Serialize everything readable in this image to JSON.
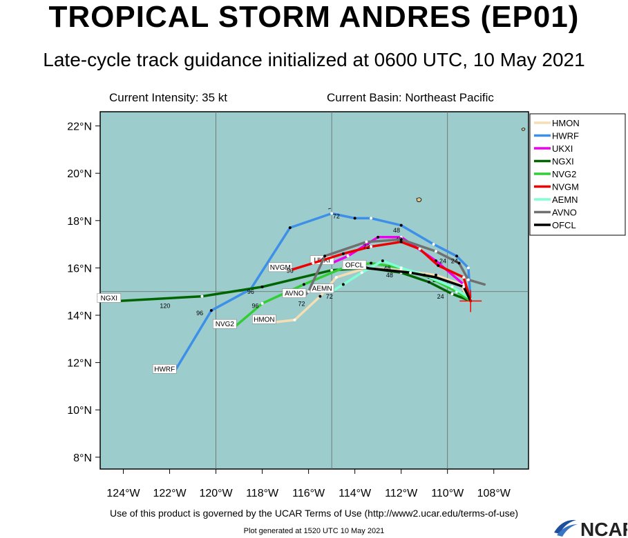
{
  "header": {
    "title": "TROPICAL STORM ANDRES (EP01)",
    "subtitle": "Late-cycle track guidance initialized at 0600 UTC, 10 May 2021",
    "intensity": "Current Intensity: 35 kt",
    "basin": "Current Basin: Northeast Pacific"
  },
  "footer": {
    "terms": "Use of this product is governed by the UCAR Terms of Use (http://www2.ucar.edu/terms-of-use)",
    "generated": "Plot generated at 1520 UTC   10 May 2021",
    "logo": "NCAR"
  },
  "colors": {
    "ocean": "#9dcccc",
    "land": "#e0c58a",
    "grid": "#666666",
    "storm_marker": "#ff0000"
  },
  "map_axes": {
    "lon_range": [
      -125,
      -106.5
    ],
    "lat_range": [
      7.5,
      22.6
    ],
    "lon_ticks": [
      -124,
      -122,
      -120,
      -118,
      -116,
      -114,
      -112,
      -110,
      -108
    ],
    "lon_labels": [
      "124°W",
      "122°W",
      "120°W",
      "118°W",
      "116°W",
      "114°W",
      "112°W",
      "110°W",
      "108°W"
    ],
    "lat_ticks": [
      8,
      10,
      12,
      14,
      16,
      18,
      20,
      22
    ],
    "lat_labels": [
      "8°N",
      "10°N",
      "12°N",
      "14°N",
      "16°N",
      "18°N",
      "20°N",
      "22°N"
    ],
    "grid_lons": [
      -120,
      -115,
      -110
    ],
    "grid_lats": [
      15
    ]
  },
  "storm_position": {
    "lon": -109.0,
    "lat": 14.6
  },
  "legend": [
    {
      "name": "HMON",
      "color": "#f5deb3"
    },
    {
      "name": "HWRF",
      "color": "#3d8fe8"
    },
    {
      "name": "UKXI",
      "color": "#ee00ee"
    },
    {
      "name": "NGXI",
      "color": "#006400"
    },
    {
      "name": "NVG2",
      "color": "#32cd32"
    },
    {
      "name": "NVGM",
      "color": "#ee0000"
    },
    {
      "name": "AEMN",
      "color": "#7fffd4"
    },
    {
      "name": "AVNO",
      "color": "#707070"
    },
    {
      "name": "OFCL",
      "color": "#000000"
    }
  ],
  "chart_data": {
    "type": "line",
    "xlabel": "",
    "ylabel": "",
    "series": [
      {
        "name": "HMON",
        "color": "#f5deb3",
        "end_label": "HMON",
        "points": [
          [
            -109.1,
            14.6
          ],
          [
            -109.4,
            15.3
          ],
          [
            -110.5,
            15.7
          ],
          [
            -112.0,
            15.9
          ],
          [
            -113.5,
            16.0
          ],
          [
            -114.8,
            15.6
          ],
          [
            -115.5,
            14.8
          ],
          [
            -116.6,
            13.8
          ],
          [
            -117.5,
            13.7
          ]
        ],
        "hour_labels": []
      },
      {
        "name": "HWRF",
        "color": "#3d8fe8",
        "end_label": "HWRF",
        "points": [
          [
            -109.0,
            14.6
          ],
          [
            -109.1,
            16.0
          ],
          [
            -109.6,
            16.5
          ],
          [
            -110.6,
            17.0
          ],
          [
            -112.0,
            17.8
          ],
          [
            -113.3,
            18.1
          ],
          [
            -114.0,
            18.1
          ],
          [
            -115.0,
            18.3
          ],
          [
            -116.8,
            17.7
          ],
          [
            -118.5,
            15.1
          ],
          [
            -120.2,
            14.2
          ],
          [
            -121.8,
            11.6
          ]
        ],
        "hour_labels": [
          {
            "text": "72",
            "lon": -114.8,
            "lat": 18.1
          },
          {
            "text": "96",
            "lon": -120.7,
            "lat": 14.0
          },
          {
            "text": "48",
            "lon": -112.2,
            "lat": 17.5
          }
        ]
      },
      {
        "name": "UKXI",
        "color": "#ee00ee",
        "end_label": "UKXI",
        "points": [
          [
            -109.0,
            14.6
          ],
          [
            -109.3,
            15.3
          ],
          [
            -110.5,
            16.3
          ],
          [
            -112.0,
            17.3
          ],
          [
            -113.0,
            17.3
          ],
          [
            -114.3,
            16.5
          ],
          [
            -115.0,
            16.2
          ]
        ],
        "hour_labels": [
          {
            "text": "48",
            "lon": -112.1,
            "lat": 17.1
          }
        ]
      },
      {
        "name": "NGXI",
        "color": "#006400",
        "end_label": "NGXI",
        "points": [
          [
            -109.0,
            14.6
          ],
          [
            -109.8,
            14.9
          ],
          [
            -110.8,
            15.4
          ],
          [
            -112.0,
            15.8
          ],
          [
            -113.5,
            16.0
          ],
          [
            -115.0,
            15.9
          ],
          [
            -118.0,
            15.2
          ],
          [
            -120.6,
            14.8
          ],
          [
            -124.2,
            14.6
          ]
        ],
        "hour_labels": [
          {
            "text": "24",
            "lon": -110.5,
            "lat": 15.4
          },
          {
            "text": "96",
            "lon": -118.5,
            "lat": 14.9
          },
          {
            "text": "120",
            "lon": -122.2,
            "lat": 14.3
          }
        ]
      },
      {
        "name": "NVG2",
        "color": "#32cd32",
        "end_label": "NVG2",
        "points": [
          [
            -109.0,
            14.6
          ],
          [
            -109.6,
            15.0
          ],
          [
            -110.8,
            15.6
          ],
          [
            -112.0,
            16.0
          ],
          [
            -113.3,
            16.2
          ],
          [
            -114.5,
            16.0
          ],
          [
            -116.2,
            15.3
          ],
          [
            -118.0,
            14.5
          ],
          [
            -119.2,
            13.5
          ]
        ],
        "hour_labels": [
          {
            "text": "24",
            "lon": -110.3,
            "lat": 14.7
          },
          {
            "text": "96",
            "lon": -118.3,
            "lat": 14.3
          }
        ]
      },
      {
        "name": "NVGM",
        "color": "#ee0000",
        "end_label": "NVGM",
        "points": [
          [
            -109.0,
            14.6
          ],
          [
            -109.3,
            15.6
          ],
          [
            -110.4,
            16.1
          ],
          [
            -111.2,
            16.8
          ],
          [
            -112.0,
            17.1
          ],
          [
            -113.3,
            16.9
          ],
          [
            -114.5,
            16.6
          ],
          [
            -115.8,
            16.2
          ],
          [
            -116.8,
            15.9
          ]
        ],
        "hour_labels": [
          {
            "text": "24",
            "lon": -110.2,
            "lat": 16.2
          },
          {
            "text": "72",
            "lon": -113.5,
            "lat": 16.8
          },
          {
            "text": "96",
            "lon": -116.8,
            "lat": 15.8
          }
        ]
      },
      {
        "name": "AEMN",
        "color": "#7fffd4",
        "end_label": "AEMN",
        "points": [
          [
            -109.0,
            14.7
          ],
          [
            -109.8,
            15.2
          ],
          [
            -111.0,
            15.7
          ],
          [
            -112.0,
            16.0
          ],
          [
            -112.8,
            16.3
          ],
          [
            -113.7,
            15.8
          ],
          [
            -114.5,
            15.3
          ],
          [
            -115.0,
            15.0
          ]
        ],
        "hour_labels": [
          {
            "text": "48",
            "lon": -112.6,
            "lat": 15.9
          },
          {
            "text": "72",
            "lon": -115.1,
            "lat": 14.7
          }
        ]
      },
      {
        "name": "AVNO",
        "color": "#707070",
        "end_label": "AVNO",
        "points": [
          [
            -108.4,
            15.3
          ],
          [
            -109.1,
            15.5
          ],
          [
            -109.5,
            16.2
          ],
          [
            -110.5,
            16.7
          ],
          [
            -112.0,
            17.2
          ],
          [
            -113.5,
            17.1
          ],
          [
            -115.3,
            16.5
          ],
          [
            -116.0,
            15.0
          ],
          [
            -116.2,
            14.8
          ]
        ],
        "hour_labels": [
          {
            "text": "72",
            "lon": -116.3,
            "lat": 14.4
          }
        ]
      },
      {
        "name": "OFCL",
        "color": "#000000",
        "end_label": "OFCL",
        "points": [
          [
            -109.0,
            14.6
          ],
          [
            -109.3,
            15.2
          ],
          [
            -110.5,
            15.6
          ],
          [
            -111.6,
            15.8
          ],
          [
            -112.6,
            15.9
          ],
          [
            -113.6,
            16.0
          ]
        ],
        "hour_labels": [
          {
            "text": "24",
            "lon": -109.7,
            "lat": 16.2
          },
          {
            "text": "48",
            "lon": -112.5,
            "lat": 15.6
          }
        ]
      }
    ]
  }
}
